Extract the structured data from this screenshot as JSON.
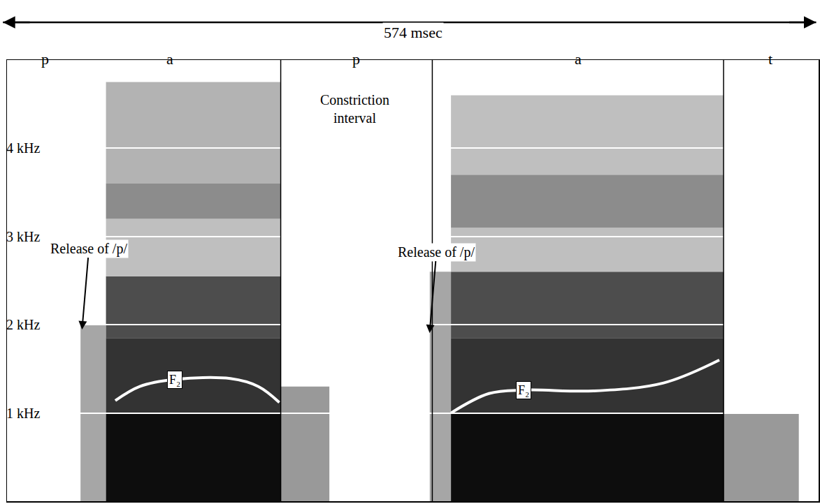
{
  "chart_data": {
    "type": "line",
    "title": "574 msec",
    "xlim": [
      0,
      574
    ],
    "ylim": [
      0,
      5
    ],
    "yticks": [
      {
        "value": 1,
        "label": "1 kHz"
      },
      {
        "value": 2,
        "label": "2 kHz"
      },
      {
        "value": 3,
        "label": "3 kHz"
      },
      {
        "value": 4,
        "label": "4 kHz"
      }
    ],
    "tick_labels": "y",
    "grid": true,
    "segments": [
      {
        "label": "p",
        "x": 27
      },
      {
        "label": "a",
        "x": 115
      },
      {
        "label": "p",
        "x": 247
      },
      {
        "label": "a",
        "x": 404
      },
      {
        "label": "t",
        "x": 540
      }
    ],
    "boundaries": [
      193.6,
      300.8,
      506.8
    ],
    "series": [
      {
        "name": "F₂",
        "color": "#ffffff",
        "x": [
          76.6,
          93.9,
          118.5,
          158.0,
          177.8,
          192.6
        ],
        "values": [
          1.14,
          1.3,
          1.38,
          1.39,
          1.3,
          1.12
        ]
      },
      {
        "name": "F₂",
        "color": "#ffffff",
        "x": [
          314.0,
          340.8,
          365.5,
          414.9,
          464.3,
          503.8
        ],
        "values": [
          1.0,
          1.22,
          1.26,
          1.25,
          1.34,
          1.6
        ]
      }
    ],
    "arrow_labels": [
      {
        "text": "Release of /p/",
        "x": 53,
        "y": 1.93
      },
      {
        "text": "Release of /p/",
        "x": 298.8,
        "y": 1.89
      }
    ],
    "labels": [
      {
        "text": "Constriction interval",
        "x": 246,
        "y": 4.45
      }
    ],
    "energy": [
      {
        "t0": 52,
        "t1": 70,
        "f0": 0,
        "f1": 2.0,
        "level": 0.35
      },
      {
        "t0": 70,
        "t1": 193.6,
        "f0": 0,
        "f1": 1.0,
        "level": 0.95
      },
      {
        "t0": 70,
        "t1": 193.6,
        "f0": 1.0,
        "f1": 1.85,
        "level": 0.8
      },
      {
        "t0": 70,
        "t1": 193.6,
        "f0": 1.85,
        "f1": 2.55,
        "level": 0.7
      },
      {
        "t0": 70,
        "t1": 193.6,
        "f0": 2.55,
        "f1": 3.2,
        "level": 0.25
      },
      {
        "t0": 70,
        "t1": 193.6,
        "f0": 3.2,
        "f1": 3.6,
        "level": 0.45
      },
      {
        "t0": 70,
        "t1": 193.6,
        "f0": 3.6,
        "f1": 4.75,
        "level": 0.3
      },
      {
        "t0": 193.6,
        "t1": 228,
        "f0": 0,
        "f1": 1.3,
        "level": 0.4
      },
      {
        "t0": 299,
        "t1": 314,
        "f0": 0,
        "f1": 2.6,
        "level": 0.35
      },
      {
        "t0": 314,
        "t1": 506.8,
        "f0": 0,
        "f1": 1.0,
        "level": 0.95
      },
      {
        "t0": 314,
        "t1": 506.8,
        "f0": 1.0,
        "f1": 1.85,
        "level": 0.8
      },
      {
        "t0": 314,
        "t1": 506.8,
        "f0": 1.85,
        "f1": 2.6,
        "level": 0.7
      },
      {
        "t0": 314,
        "t1": 506.8,
        "f0": 2.6,
        "f1": 3.1,
        "level": 0.25
      },
      {
        "t0": 314,
        "t1": 506.8,
        "f0": 3.1,
        "f1": 3.7,
        "level": 0.45
      },
      {
        "t0": 314,
        "t1": 506.8,
        "f0": 3.7,
        "f1": 4.6,
        "level": 0.25
      },
      {
        "t0": 506.8,
        "t1": 560,
        "f0": 0,
        "f1": 1.0,
        "level": 0.4
      }
    ]
  }
}
